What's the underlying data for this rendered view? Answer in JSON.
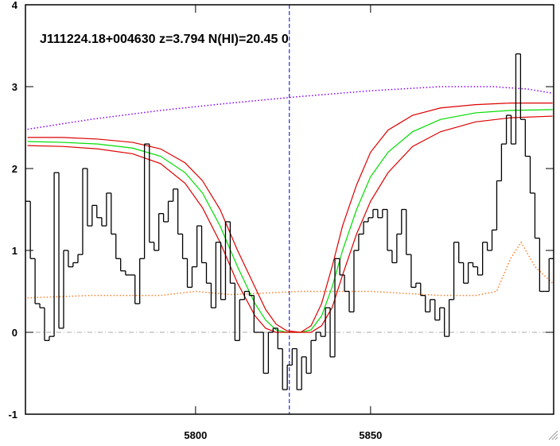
{
  "chart_data": {
    "type": "spectrum",
    "title": "J111224.18+004630 z=3.794 N(HI)=20.45 0",
    "xlim": [
      5751.4,
      5902.3
    ],
    "ylim": [
      -1,
      4
    ],
    "xticks": [
      5800,
      5850
    ],
    "yticks": [
      4,
      3,
      2,
      1,
      0,
      -1
    ],
    "hlines": [
      0
    ],
    "vlines": [
      5826.8
    ],
    "series": [
      {
        "style": "step",
        "color": "#000000",
        "x": [
          5752.1,
          5753.5,
          5754.8,
          5756.2,
          5757.5,
          5758.9,
          5760.3,
          5761.6,
          5763.0,
          5764.3,
          5765.7,
          5767.1,
          5768.4,
          5769.8,
          5771.1,
          5772.5,
          5773.9,
          5775.2,
          5776.6,
          5777.9,
          5779.3,
          5780.7,
          5782.0,
          5783.4,
          5784.7,
          5786.1,
          5787.5,
          5788.8,
          5790.2,
          5791.5,
          5792.9,
          5794.3,
          5795.6,
          5797.0,
          5798.3,
          5799.7,
          5801.1,
          5802.4,
          5803.8,
          5805.1,
          5806.5,
          5807.9,
          5809.2,
          5810.6,
          5811.9,
          5813.3,
          5814.7,
          5816.0,
          5817.4,
          5818.7,
          5820.1,
          5821.5,
          5822.8,
          5824.2,
          5825.5,
          5826.9,
          5828.3,
          5829.6,
          5831.0,
          5832.3,
          5833.7,
          5835.1,
          5836.4,
          5837.8,
          5839.1,
          5840.5,
          5841.9,
          5843.2,
          5844.6,
          5845.9,
          5847.3,
          5848.7,
          5850.0,
          5851.4,
          5852.7,
          5854.1,
          5855.5,
          5856.8,
          5858.2,
          5859.5,
          5860.9,
          5862.3,
          5863.6,
          5865.0,
          5866.3,
          5867.7,
          5869.1,
          5870.4,
          5871.8,
          5873.1,
          5874.5,
          5875.9,
          5877.2,
          5878.6,
          5879.9,
          5881.3,
          5882.7,
          5884.0,
          5885.4,
          5886.7,
          5888.1,
          5889.5,
          5890.8,
          5892.2,
          5893.5,
          5894.9,
          5896.3,
          5897.6,
          5899.0,
          5900.3,
          5901.7
        ],
        "values": [
          1.6,
          0.9,
          0.35,
          0.3,
          -0.1,
          -0.05,
          1.95,
          0.05,
          1.0,
          0.8,
          0.85,
          0.95,
          2.0,
          1.3,
          1.55,
          1.4,
          1.3,
          1.7,
          1.2,
          0.9,
          0.75,
          0.7,
          0.7,
          0.35,
          0.9,
          2.3,
          1.1,
          1.0,
          1.45,
          1.35,
          1.6,
          1.75,
          1.2,
          0.9,
          0.55,
          0.8,
          1.3,
          0.85,
          0.6,
          0.3,
          1.1,
          0.4,
          1.35,
          0.6,
          -0.1,
          0.4,
          0.5,
          0.45,
          0.0,
          0.0,
          -0.5,
          0.0,
          0.05,
          -0.2,
          -0.7,
          -0.4,
          -0.2,
          -0.7,
          -0.3,
          -0.5,
          -0.1,
          0.0,
          -0.05,
          0.3,
          -0.3,
          0.9,
          0.7,
          0.5,
          0.25,
          1.0,
          1.2,
          1.35,
          1.4,
          1.5,
          1.4,
          1.5,
          1.0,
          0.85,
          1.2,
          1.5,
          0.95,
          0.55,
          0.6,
          0.45,
          0.25,
          0.4,
          0.15,
          0.3,
          -0.05,
          0.4,
          1.1,
          0.85,
          0.6,
          0.85,
          0.8,
          0.7,
          1.1,
          1.0,
          1.25,
          1.85,
          2.3,
          2.65,
          2.3,
          3.4,
          2.6,
          2.15,
          1.7,
          1.15,
          0.5,
          0.5,
          0.9
        ]
      },
      {
        "style": "dotted",
        "color": "#ff7f2a",
        "x": [
          5752,
          5770,
          5790,
          5800,
          5810,
          5830,
          5850,
          5870,
          5880,
          5886,
          5890,
          5893,
          5897,
          5902
        ],
        "values": [
          0.42,
          0.45,
          0.45,
          0.5,
          0.46,
          0.5,
          0.5,
          0.45,
          0.45,
          0.5,
          0.9,
          1.1,
          0.8,
          0.6
        ]
      },
      {
        "style": "dotted",
        "color": "#8a00ff",
        "x": [
          5752,
          5770,
          5790,
          5810,
          5830,
          5850,
          5870,
          5885,
          5895,
          5902
        ],
        "values": [
          2.48,
          2.6,
          2.71,
          2.8,
          2.88,
          2.95,
          3.0,
          3.0,
          2.97,
          2.92
        ]
      },
      {
        "style": "line",
        "color": "#00dd00",
        "x": [
          5752,
          5762,
          5772,
          5782,
          5790,
          5797,
          5802,
          5807,
          5812,
          5817,
          5820,
          5823,
          5826,
          5830,
          5833,
          5836,
          5839,
          5842,
          5846,
          5850,
          5855,
          5862,
          5870,
          5880,
          5890,
          5902
        ],
        "values": [
          2.33,
          2.32,
          2.3,
          2.25,
          2.15,
          1.95,
          1.7,
          1.3,
          0.8,
          0.35,
          0.15,
          0.03,
          0,
          0,
          0.03,
          0.2,
          0.55,
          1.0,
          1.5,
          1.9,
          2.2,
          2.45,
          2.6,
          2.68,
          2.71,
          2.72
        ]
      },
      {
        "style": "line",
        "color": "#dd0000",
        "x": [
          5752,
          5762,
          5772,
          5782,
          5790,
          5797,
          5802,
          5807,
          5812,
          5817,
          5820,
          5823,
          5826,
          5830,
          5833,
          5836,
          5839,
          5842,
          5846,
          5850,
          5855,
          5862,
          5870,
          5880,
          5890,
          5902
        ],
        "values": [
          2.38,
          2.38,
          2.36,
          2.32,
          2.24,
          2.07,
          1.85,
          1.5,
          1.0,
          0.55,
          0.28,
          0.1,
          0.02,
          0.0,
          0.08,
          0.35,
          0.8,
          1.3,
          1.8,
          2.2,
          2.47,
          2.65,
          2.74,
          2.78,
          2.8,
          2.8
        ]
      },
      {
        "style": "line",
        "color": "#dd0000",
        "x": [
          5752,
          5762,
          5772,
          5782,
          5790,
          5797,
          5802,
          5807,
          5812,
          5817,
          5820,
          5823,
          5826,
          5830,
          5833,
          5836,
          5839,
          5842,
          5846,
          5850,
          5855,
          5862,
          5870,
          5880,
          5890,
          5902
        ],
        "values": [
          2.28,
          2.27,
          2.24,
          2.18,
          2.06,
          1.82,
          1.52,
          1.1,
          0.6,
          0.2,
          0.05,
          0.0,
          0,
          0,
          0,
          0.08,
          0.3,
          0.7,
          1.2,
          1.6,
          1.95,
          2.27,
          2.45,
          2.57,
          2.62,
          2.64
        ]
      }
    ]
  }
}
